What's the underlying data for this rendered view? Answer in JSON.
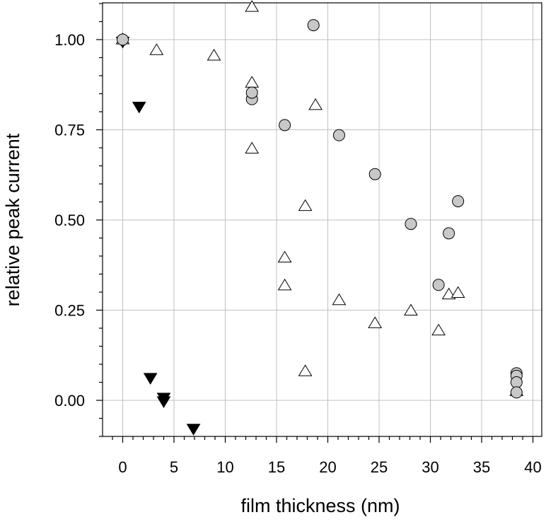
{
  "chart_data": {
    "type": "scatter",
    "title": "",
    "xlabel": "film thickness (nm)",
    "ylabel": "relative peak current",
    "xlim": [
      -2,
      40
    ],
    "ylim": [
      -0.1,
      1.1
    ],
    "xticks": [
      0,
      5,
      10,
      15,
      20,
      25,
      30,
      35,
      40
    ],
    "yticks": [
      0.0,
      0.25,
      0.5,
      0.75,
      1.0
    ],
    "xtick_labels": [
      "0",
      "5",
      "10",
      "15",
      "20",
      "25",
      "30",
      "35",
      "40"
    ],
    "ytick_labels": [
      "0.00",
      "0.25",
      "0.50",
      "0.75",
      "1.00"
    ],
    "grid": true,
    "legend": "none",
    "colors": {
      "circle_fill": "#c8c8c8",
      "stroke": "#000000",
      "triangle_down_fill": "#000000",
      "triangle_up_fill": "#ffffff",
      "grid": "#c0c0c0"
    },
    "series": [
      {
        "name": "circles",
        "marker": "circle",
        "x": [
          0,
          12.6,
          12.6,
          15.8,
          18.6,
          21.1,
          24.6,
          28.1,
          30.8,
          31.8,
          32.7,
          38.4,
          38.4,
          38.4,
          38.4
        ],
        "y": [
          1.0,
          0.835,
          0.853,
          0.763,
          1.04,
          0.735,
          0.627,
          0.489,
          0.32,
          0.463,
          0.552,
          0.075,
          0.068,
          0.05,
          0.022
        ]
      },
      {
        "name": "open triangles",
        "marker": "triangle-up",
        "x": [
          0,
          3.3,
          8.9,
          12.6,
          12.6,
          12.6,
          15.8,
          15.8,
          17.8,
          17.8,
          18.8,
          21.1,
          24.6,
          28.1,
          30.8,
          31.8,
          32.7,
          38.4
        ],
        "y": [
          1.0,
          0.97,
          0.955,
          1.09,
          0.88,
          0.697,
          0.395,
          0.318,
          0.538,
          0.08,
          0.818,
          0.277,
          0.213,
          0.248,
          0.193,
          0.293,
          0.297,
          0.025
        ]
      },
      {
        "name": "filled triangles",
        "marker": "triangle-down",
        "x": [
          0,
          1.6,
          2.7,
          4.0,
          4.0,
          6.9
        ],
        "y": [
          0.995,
          0.815,
          0.063,
          0.008,
          -0.002,
          -0.078
        ]
      }
    ]
  }
}
